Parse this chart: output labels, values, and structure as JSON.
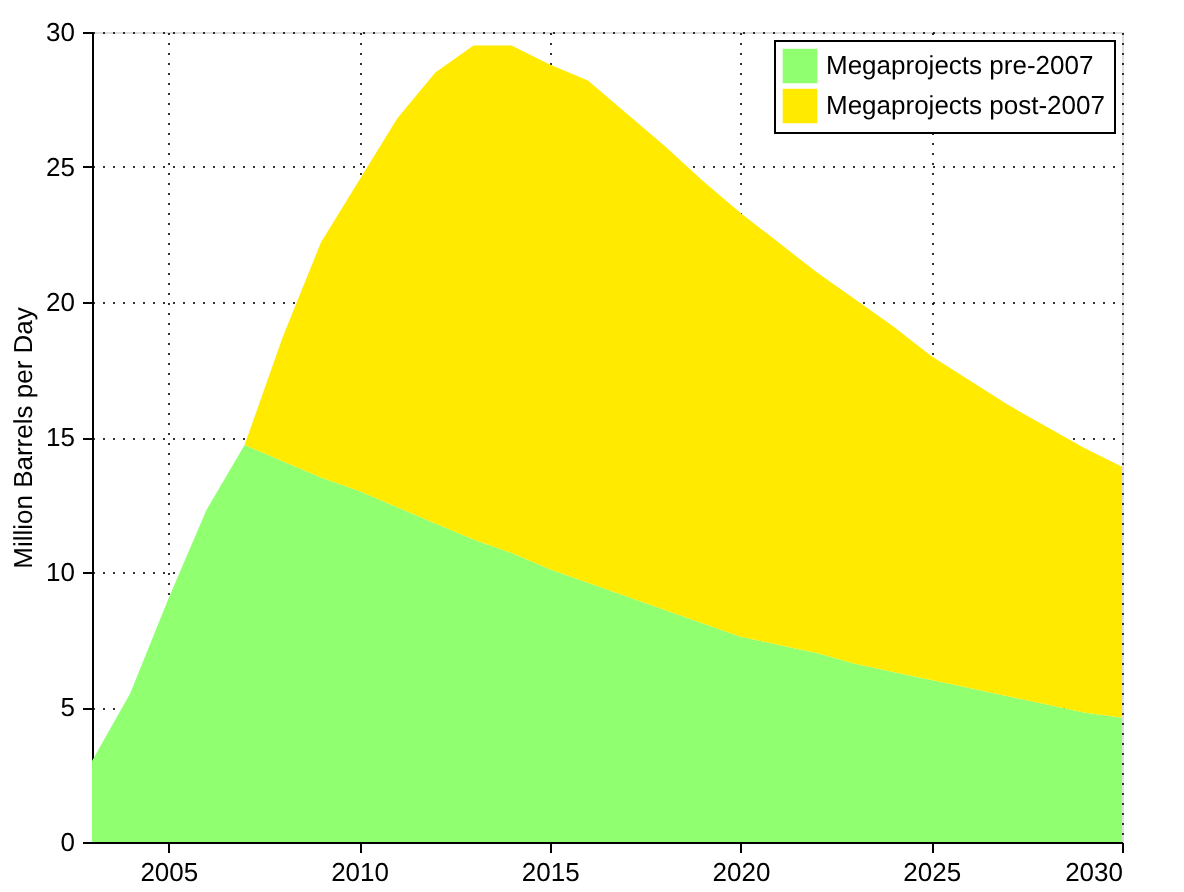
{
  "chart_data": {
    "type": "area",
    "stacked": true,
    "ylabel": "Million Barrels per Day",
    "x": [
      2003,
      2004,
      2005,
      2006,
      2007,
      2008,
      2009,
      2010,
      2011,
      2012,
      2013,
      2014,
      2015,
      2016,
      2017,
      2018,
      2019,
      2020,
      2021,
      2022,
      2023,
      2024,
      2025,
      2026,
      2027,
      2028,
      2029,
      2030
    ],
    "series": [
      {
        "name": "Megaprojects pre-2007",
        "color": "#90ff70",
        "values": [
          3.0,
          5.5,
          9.0,
          12.3,
          14.7,
          14.1,
          13.5,
          13.0,
          12.4,
          11.8,
          11.2,
          10.7,
          10.1,
          9.6,
          9.1,
          8.6,
          8.1,
          7.6,
          7.3,
          7.0,
          6.6,
          6.3,
          6.0,
          5.7,
          5.4,
          5.1,
          4.8,
          4.6
        ]
      },
      {
        "name": "Megaprojects post-2007",
        "color": "#ffea00",
        "values": [
          0,
          0,
          0,
          0,
          0,
          4.6,
          8.7,
          11.5,
          14.4,
          16.7,
          18.3,
          18.8,
          18.7,
          18.6,
          17.9,
          17.2,
          16.4,
          15.7,
          14.9,
          14.1,
          13.5,
          12.8,
          12.0,
          11.4,
          10.8,
          10.3,
          9.8,
          9.3
        ]
      }
    ],
    "xlim": [
      2003,
      2030
    ],
    "xticks": [
      2005,
      2010,
      2015,
      2020,
      2025,
      2030
    ],
    "ylim": [
      0,
      30
    ],
    "yticks": [
      0,
      5,
      10,
      15,
      20,
      25,
      30
    ],
    "grid": true,
    "legend": "top right"
  }
}
